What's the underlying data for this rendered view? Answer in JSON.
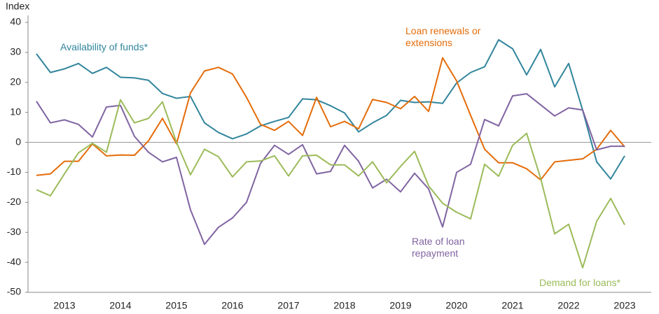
{
  "chart_data": {
    "type": "line",
    "ylabel": "Index",
    "categories": [
      null,
      null,
      "2013",
      null,
      null,
      null,
      "2014",
      null,
      null,
      null,
      "2015",
      null,
      null,
      null,
      "2016",
      null,
      null,
      null,
      "2017",
      null,
      null,
      null,
      "2018",
      null,
      null,
      null,
      "2019",
      null,
      null,
      null,
      "2020",
      null,
      null,
      null,
      "2021",
      null,
      null,
      null,
      "2022",
      null,
      null,
      null,
      "2023"
    ],
    "ylim": [
      -50,
      40
    ],
    "yticks": [
      40,
      30,
      20,
      10,
      0,
      -10,
      -20,
      -30,
      -40,
      -50
    ],
    "series": [
      {
        "name": "Availability of funds*",
        "color": "#31859c",
        "values": [
          29.5,
          23.3,
          24.5,
          26.3,
          23,
          25,
          21.7,
          21.5,
          20.7,
          16.3,
          14.7,
          15.3,
          6.5,
          3.3,
          1.2,
          2.8,
          5.5,
          7,
          8.3,
          14.5,
          14.2,
          12.2,
          9.8,
          3.5,
          6.5,
          9,
          14,
          13.3,
          13.5,
          13,
          19.8,
          23.3,
          25.2,
          34.2,
          31.2,
          22.5,
          31,
          18.5,
          26.3,
          10.7,
          -6.5,
          -12.2,
          -4.5
        ]
      },
      {
        "name": "Loan renewals or extensions",
        "color": "#e46c0a",
        "values": [
          -11,
          -10.5,
          -6.3,
          -6.3,
          -0.5,
          -4.5,
          -4.2,
          -4.3,
          0.5,
          8,
          -0.5,
          16.5,
          23.8,
          25,
          22.8,
          15,
          6,
          4,
          7,
          2.3,
          15,
          5.2,
          7,
          4.5,
          14.3,
          13.3,
          11.2,
          15.3,
          10.3,
          28.2,
          20.5,
          9,
          -2.3,
          -6.8,
          -6.8,
          -8.8,
          -12.5,
          -6.5,
          -6,
          -5.5,
          -2.3,
          4,
          -1.5
        ]
      },
      {
        "name": "Rate of loan repayment",
        "color": "#8064a2",
        "values": [
          13.7,
          6.5,
          7.5,
          6,
          1.8,
          11.8,
          12.3,
          2,
          -3.3,
          -6.5,
          -5,
          -22.5,
          -34,
          -28.3,
          -25.2,
          -20,
          -7,
          -1,
          -4,
          -0.8,
          -10.5,
          -9.7,
          -1,
          -6.3,
          -15.2,
          -12.3,
          -16.5,
          -10.3,
          -15.5,
          -28.2,
          -10,
          -7.3,
          7.6,
          5.5,
          15.5,
          16.2,
          12.5,
          8.8,
          11.5,
          10.8,
          -2.5,
          -1.3,
          -1.3
        ]
      },
      {
        "name": "Demand for loans*",
        "color": "#9bbb59",
        "values": [
          -15.8,
          -17.8,
          -10.5,
          -3.5,
          -0.3,
          -3.3,
          14.2,
          6.5,
          8,
          13.5,
          0,
          -10.8,
          -2.3,
          -4.8,
          -11.5,
          -6.5,
          -6.2,
          -4.5,
          -11.2,
          -4.5,
          -4.3,
          -7.5,
          -7.5,
          -11.2,
          -6.5,
          -13.5,
          -8,
          -3,
          -14.5,
          -20.3,
          -23.3,
          -25.5,
          -7.3,
          -11.3,
          -1,
          3,
          -12,
          -30.5,
          -27.3,
          -41.8,
          -26.3,
          -18.7,
          -27.5
        ]
      }
    ]
  }
}
